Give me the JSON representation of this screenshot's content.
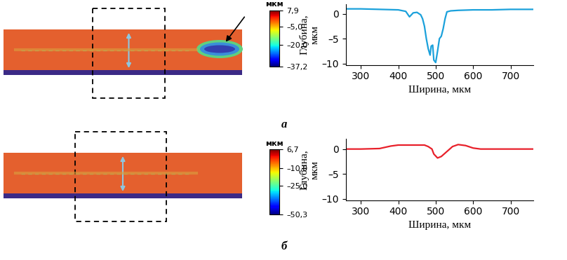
{
  "chart_data": [
    {
      "type": "line",
      "panel_label": "а",
      "x_label": "Ширина, мкм",
      "y_label": "Глубина, мкм",
      "xlim": [
        260,
        760
      ],
      "xticks": [
        300,
        400,
        500,
        600,
        700
      ],
      "ylim": [
        -10.3,
        2
      ],
      "yticks": [
        {
          "value": -10,
          "label": "–10"
        },
        {
          "value": -5,
          "label": "–5"
        },
        0
      ],
      "x": [
        260,
        300,
        350,
        400,
        420,
        430,
        440,
        450,
        460,
        465,
        470,
        475,
        480,
        485,
        488,
        492,
        495,
        500,
        505,
        510,
        515,
        520,
        525,
        530,
        540,
        560,
        600,
        650,
        700,
        760
      ],
      "series": [
        {
          "color": "#1ba1db",
          "values": [
            1.0,
            1.0,
            0.9,
            0.8,
            0.5,
            -0.6,
            0.2,
            0.3,
            -0.2,
            -1.0,
            -2.5,
            -5.0,
            -7.0,
            -8.3,
            -6.5,
            -6.3,
            -9.3,
            -9.8,
            -7.5,
            -5.0,
            -4.5,
            -3.0,
            -1.0,
            0.4,
            0.6,
            0.7,
            0.8,
            0.8,
            0.9,
            0.9
          ]
        }
      ],
      "colorbar": {
        "label": "мкм",
        "range": [
          -37.2,
          7.9
        ],
        "ticks": [
          {
            "value": 7.9,
            "label": "7,9"
          },
          {
            "value": -5.0,
            "label": "–5,0"
          },
          {
            "value": -20.0,
            "label": "–20,0"
          },
          {
            "value": -37.2,
            "label": "–37,2"
          }
        ]
      }
    },
    {
      "type": "line",
      "panel_label": "б",
      "x_label": "Ширина, мкм",
      "y_label": "Глубина, мкм",
      "xlim": [
        260,
        760
      ],
      "xticks": [
        300,
        400,
        500,
        600,
        700
      ],
      "ylim": [
        -10.3,
        2
      ],
      "yticks": [
        {
          "value": -10,
          "label": "–10"
        },
        {
          "value": -5,
          "label": "–5"
        },
        0
      ],
      "x": [
        260,
        300,
        350,
        380,
        400,
        450,
        470,
        480,
        490,
        495,
        505,
        515,
        530,
        545,
        560,
        580,
        600,
        620,
        700,
        760
      ],
      "series": [
        {
          "color": "#e8202a",
          "values": [
            0.0,
            0.0,
            0.1,
            0.6,
            0.8,
            0.8,
            0.8,
            0.5,
            0.0,
            -1.0,
            -1.8,
            -1.5,
            -0.5,
            0.5,
            0.9,
            0.7,
            0.2,
            0.0,
            0.0,
            0.0
          ]
        }
      ],
      "colorbar": {
        "label": "мкм",
        "range": [
          -50.3,
          6.7
        ],
        "ticks": [
          {
            "value": 6.7,
            "label": "6,7"
          },
          {
            "value": -10.0,
            "label": "–10,0"
          },
          {
            "value": -25.0,
            "label": "–25,0"
          },
          {
            "value": -50.3,
            "label": "–50,3"
          }
        ]
      }
    }
  ]
}
